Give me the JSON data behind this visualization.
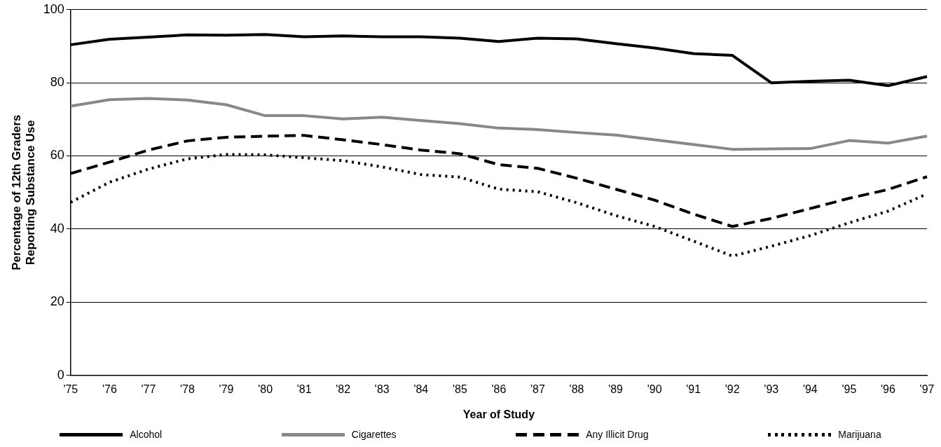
{
  "chart_data": {
    "type": "line",
    "xlabel": "Year of Study",
    "ylabel": "Percentage of 12th Graders\nReporting Substance Use",
    "categories": [
      "'75",
      "'76",
      "'77",
      "'78",
      "'79",
      "'80",
      "'81",
      "'82",
      "'83",
      "'84",
      "'85",
      "'86",
      "'87",
      "'88",
      "'89",
      "'90",
      "'91",
      "'92",
      "'93",
      "'94",
      "'95",
      "'96",
      "'97"
    ],
    "ylim": [
      0,
      100
    ],
    "yticks": [
      0,
      20,
      40,
      60,
      80,
      100
    ],
    "grid": "y",
    "legend": "bottom",
    "marker": "none",
    "series": [
      {
        "name": "Alcohol",
        "color": "#000000",
        "line_style": "solid",
        "values": [
          90.4,
          91.9,
          92.5,
          93.1,
          93.0,
          93.2,
          92.6,
          92.8,
          92.6,
          92.6,
          92.2,
          91.3,
          92.2,
          92.0,
          90.7,
          89.5,
          88.0,
          87.5,
          80.0,
          80.4,
          80.7,
          79.2,
          81.7
        ]
      },
      {
        "name": "Cigarettes",
        "color": "#888888",
        "line_style": "solid",
        "values": [
          73.6,
          75.4,
          75.7,
          75.3,
          74.0,
          71.0,
          71.0,
          70.1,
          70.6,
          69.7,
          68.8,
          67.6,
          67.2,
          66.4,
          65.7,
          64.4,
          63.1,
          61.8,
          61.9,
          62.0,
          64.2,
          63.5,
          65.4
        ]
      },
      {
        "name": "Any Illicit Drug",
        "color": "#000000",
        "line_style": "dashed",
        "values": [
          55.2,
          58.3,
          61.6,
          64.1,
          65.1,
          65.4,
          65.6,
          64.4,
          63.1,
          61.6,
          60.6,
          57.6,
          56.6,
          53.9,
          50.9,
          47.9,
          44.1,
          40.7,
          42.9,
          45.6,
          48.4,
          50.8,
          54.3
        ]
      },
      {
        "name": "Marijuana",
        "color": "#000000",
        "line_style": "dotted",
        "values": [
          47.3,
          52.8,
          56.4,
          59.2,
          60.4,
          60.3,
          59.5,
          58.7,
          57.0,
          54.9,
          54.2,
          50.9,
          50.2,
          47.2,
          43.7,
          40.7,
          36.7,
          32.6,
          35.3,
          38.2,
          41.7,
          44.9,
          49.6
        ]
      }
    ]
  }
}
